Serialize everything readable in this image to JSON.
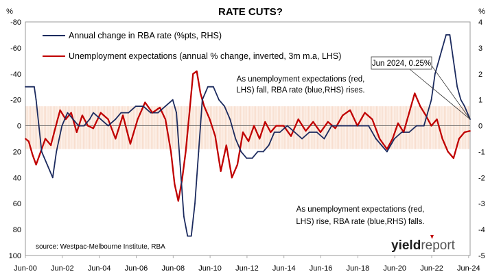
{
  "chart_data": {
    "type": "line",
    "title": "RATE CUTS?",
    "left_axis": {
      "unit_label": "%",
      "min": -80,
      "max": 100,
      "inverted": true,
      "ticks": [
        "-80",
        "-60",
        "-40",
        "-20",
        "0",
        "20",
        "40",
        "60",
        "80",
        "100"
      ]
    },
    "right_axis": {
      "unit_label": "%",
      "min": -5,
      "max": 4,
      "ticks": [
        "4",
        "3",
        "2",
        "1",
        "0",
        "-1",
        "-2",
        "-3",
        "-4",
        "-5"
      ]
    },
    "x_axis": {
      "start": 2000.42,
      "end": 2024.5,
      "ticks": [
        "Jun-00",
        "Jun-02",
        "Jun-04",
        "Jun-06",
        "Jun-08",
        "Jun-10",
        "Jun-12",
        "Jun-14",
        "Jun-16",
        "Jun-18",
        "Jun-20",
        "Jun-22",
        "Jun-24"
      ]
    },
    "band": {
      "top_lhs": -15,
      "bottom_lhs": 18,
      "color": "#f5d6c3"
    },
    "series": [
      {
        "name": "Annual change in RBA rate (%pts, RHS)",
        "axis": "right",
        "color": "#1b2a5e",
        "x": [
          2000.42,
          2000.9,
          2001.0,
          2001.3,
          2001.6,
          2001.9,
          2002.1,
          2002.4,
          2002.7,
          2003.0,
          2003.3,
          2003.6,
          2003.9,
          2004.1,
          2004.5,
          2004.9,
          2005.3,
          2005.6,
          2006.0,
          2006.4,
          2006.8,
          2007.2,
          2007.6,
          2008.0,
          2008.4,
          2008.6,
          2008.8,
          2009.0,
          2009.2,
          2009.4,
          2009.6,
          2009.8,
          2010.0,
          2010.3,
          2010.6,
          2010.9,
          2011.2,
          2011.5,
          2011.8,
          2012.1,
          2012.4,
          2012.7,
          2013.0,
          2013.3,
          2013.6,
          2013.9,
          2014.2,
          2014.6,
          2015.0,
          2015.4,
          2015.8,
          2016.2,
          2016.6,
          2017.0,
          2017.5,
          2018.0,
          2018.5,
          2019.0,
          2019.4,
          2019.7,
          2020.0,
          2020.4,
          2020.8,
          2021.2,
          2021.6,
          2022.0,
          2022.4,
          2022.6,
          2022.8,
          2023.0,
          2023.2,
          2023.4,
          2023.6,
          2023.8,
          2024.0,
          2024.2,
          2024.5
        ],
        "y": [
          1.5,
          1.5,
          1.0,
          -1.0,
          -1.5,
          -2.0,
          -1.0,
          0.0,
          0.5,
          0.25,
          0.0,
          0.0,
          0.25,
          0.5,
          0.25,
          0.0,
          0.25,
          0.5,
          0.5,
          0.75,
          0.75,
          0.5,
          0.5,
          0.75,
          1.0,
          0.5,
          -1.5,
          -3.5,
          -4.25,
          -4.25,
          -3.0,
          -1.0,
          1.0,
          1.5,
          1.5,
          1.0,
          0.75,
          0.25,
          -0.5,
          -1.0,
          -1.25,
          -1.25,
          -1.0,
          -1.0,
          -0.75,
          -0.25,
          -0.25,
          0.0,
          -0.25,
          -0.5,
          -0.25,
          -0.25,
          -0.5,
          0.0,
          0.0,
          0.0,
          0.0,
          0.0,
          -0.5,
          -0.75,
          -1.0,
          -0.5,
          -0.25,
          -0.25,
          0.0,
          0.0,
          1.0,
          2.0,
          2.5,
          3.0,
          3.5,
          3.5,
          2.5,
          1.5,
          1.0,
          0.75,
          0.25
        ]
      },
      {
        "name": "Unemployment expectations (annual % change, inverted, 3m m.a, LHS)",
        "axis": "left",
        "color": "#c00000",
        "x": [
          2000.42,
          2000.6,
          2000.8,
          2001.0,
          2001.2,
          2001.5,
          2001.8,
          2002.0,
          2002.3,
          2002.6,
          2002.9,
          2003.2,
          2003.5,
          2003.8,
          2004.1,
          2004.5,
          2004.9,
          2005.3,
          2005.7,
          2006.1,
          2006.5,
          2006.9,
          2007.3,
          2007.7,
          2008.0,
          2008.3,
          2008.5,
          2008.7,
          2008.9,
          2009.1,
          2009.3,
          2009.5,
          2009.7,
          2009.9,
          2010.1,
          2010.4,
          2010.7,
          2011.0,
          2011.3,
          2011.6,
          2011.9,
          2012.2,
          2012.5,
          2012.8,
          2013.1,
          2013.4,
          2013.7,
          2014.0,
          2014.4,
          2014.8,
          2015.2,
          2015.6,
          2016.0,
          2016.4,
          2016.8,
          2017.2,
          2017.6,
          2018.0,
          2018.4,
          2018.8,
          2019.2,
          2019.6,
          2020.0,
          2020.3,
          2020.6,
          2020.9,
          2021.2,
          2021.5,
          2021.8,
          2022.1,
          2022.4,
          2022.7,
          2023.0,
          2023.3,
          2023.6,
          2023.9,
          2024.2,
          2024.5
        ],
        "y": [
          10,
          12,
          22,
          30,
          22,
          10,
          15,
          4,
          -12,
          -5,
          -10,
          5,
          -8,
          0,
          2,
          -10,
          -5,
          10,
          -8,
          14,
          -5,
          -18,
          -10,
          -14,
          -5,
          20,
          45,
          58,
          42,
          20,
          -10,
          -40,
          -42,
          -25,
          -15,
          -5,
          8,
          35,
          15,
          40,
          30,
          5,
          12,
          0,
          10,
          -3,
          5,
          0,
          0,
          8,
          -5,
          4,
          -3,
          5,
          -3,
          2,
          -8,
          -12,
          0,
          -10,
          -5,
          10,
          18,
          10,
          -2,
          5,
          -10,
          -25,
          -15,
          -8,
          0,
          -5,
          10,
          20,
          25,
          10,
          5,
          4
        ]
      }
    ],
    "callout": "Jun 2024, 0.25%",
    "annotations": [
      "As unemployment expectations (red,",
      "LHS) fall, RBA rate (blue,RHS) rises.",
      "As unemployment expectations (red,",
      "LHS) rise, RBA rate (blue,RHS) falls."
    ],
    "source": "source: Westpac-Melbourne Institute, RBA",
    "logo": {
      "part1": "yield",
      "part2": "report"
    }
  }
}
